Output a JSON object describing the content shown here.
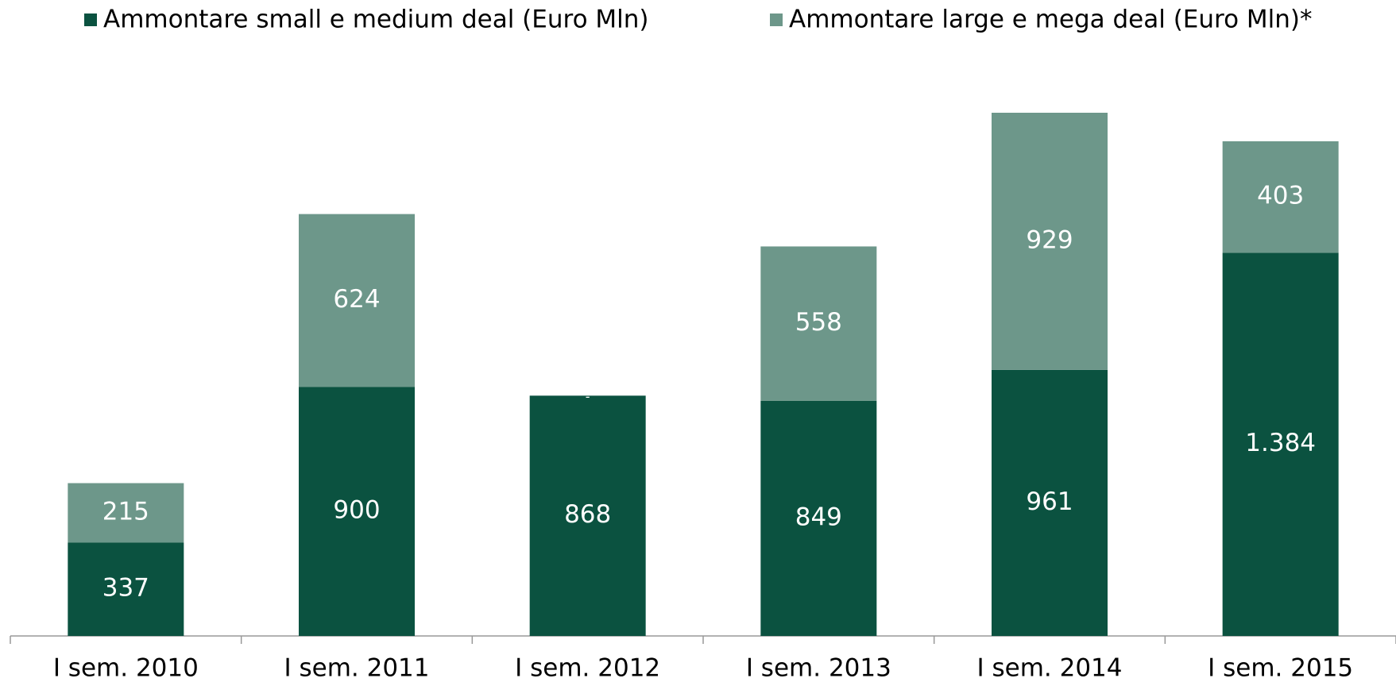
{
  "chart_data": {
    "type": "stacked_bar",
    "categories": [
      "I sem. 2010",
      "I sem. 2011",
      "I sem. 2012",
      "I sem. 2013",
      "I sem. 2014",
      "I sem. 2015"
    ],
    "series": [
      {
        "name": "Ammontare small e medium deal (Euro Mln)",
        "color": "#0b5240",
        "values": [
          337,
          900,
          868,
          849,
          961,
          1384
        ],
        "value_labels": [
          "337",
          "900",
          "868",
          "849",
          "961",
          "1.384"
        ]
      },
      {
        "name": "Ammontare large e mega deal (Euro Mln)*",
        "color": "#6d978a",
        "values": [
          215,
          624,
          0,
          558,
          929,
          403
        ],
        "value_labels": [
          "215",
          "624",
          "-",
          "558",
          "929",
          "403"
        ]
      }
    ]
  }
}
